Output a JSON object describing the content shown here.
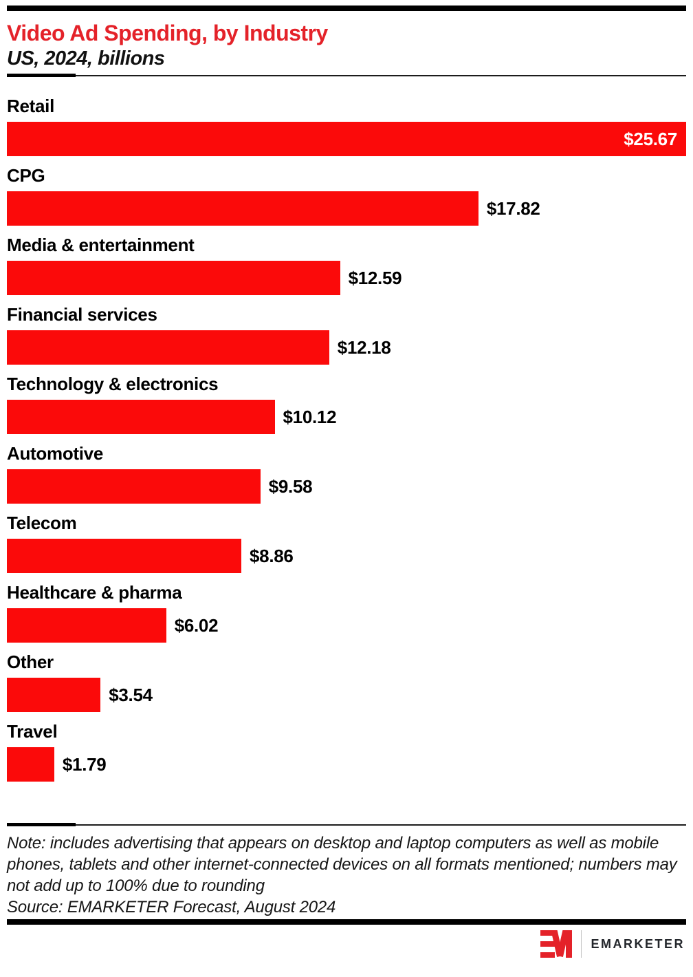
{
  "header": {
    "title": "Video Ad Spending, by Industry",
    "subtitle": "US, 2024, billions"
  },
  "chart_data": {
    "type": "bar",
    "orientation": "horizontal",
    "title": "Video Ad Spending, by Industry",
    "subtitle": "US, 2024, billions",
    "unit": "US$ billions",
    "categories": [
      "Retail",
      "CPG",
      "Media & entertainment",
      "Financial services",
      "Technology & electronics",
      "Automotive",
      "Telecom",
      "Healthcare & pharma",
      "Other",
      "Travel"
    ],
    "values": [
      25.67,
      17.82,
      12.59,
      12.18,
      10.12,
      9.58,
      8.86,
      6.02,
      3.54,
      1.79
    ],
    "value_labels": [
      "$25.67",
      "$17.82",
      "$12.59",
      "$12.18",
      "$10.12",
      "$9.58",
      "$8.86",
      "$6.02",
      "$3.54",
      "$1.79"
    ],
    "value_label_inside": [
      true,
      false,
      false,
      false,
      false,
      false,
      false,
      false,
      false,
      false
    ],
    "xlim": [
      0,
      25.67
    ],
    "grid": false,
    "legend": "none"
  },
  "colors": {
    "bar": "#fb0a0a",
    "title_red": "#e42229",
    "logo_red": "#e42229",
    "text": "#000000"
  },
  "footer": {
    "note": "Note: includes advertising that appears on desktop and laptop computers as well as mobile phones, tablets and other internet-connected devices on all formats mentioned; numbers may not add up to 100% due to rounding",
    "source": "Source: EMARKETER Forecast, August 2024"
  },
  "logo": {
    "brand": "EMARKETER",
    "mark": "EM-monogram"
  }
}
